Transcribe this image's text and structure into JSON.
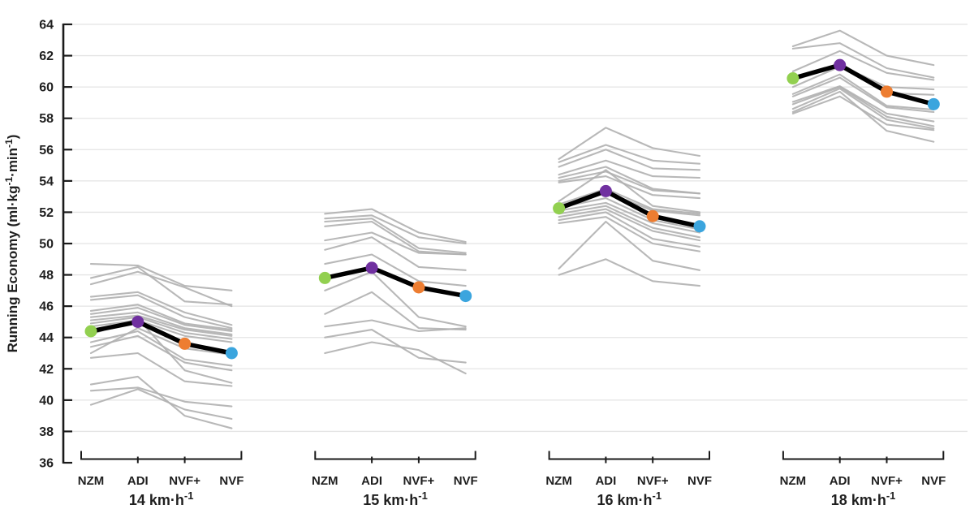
{
  "figure": {
    "background": "#ffffff"
  },
  "chart_data": {
    "type": "line",
    "title": "",
    "ylabel_parts": [
      {
        "t": "Running Economy (ml·kg"
      },
      {
        "t": "-1",
        "sup": true
      },
      {
        "t": "·min"
      },
      {
        "t": "-1",
        "sup": true
      },
      {
        "t": ")"
      }
    ],
    "ylim": [
      36,
      64
    ],
    "yticks": [
      36,
      38,
      40,
      42,
      44,
      46,
      48,
      50,
      52,
      54,
      56,
      58,
      60,
      62,
      64
    ],
    "grid": "horizontal",
    "legend": "none",
    "conditions": [
      "NZM",
      "ADI",
      "NVF+",
      "NVF"
    ],
    "condition_colors": {
      "NZM": "#92d050",
      "ADI": "#7030a0",
      "NVF+": "#ed7d31",
      "NVF": "#3ba5de"
    },
    "colors": {
      "individual": "#b0b0b0",
      "mean": "#000000",
      "grid": "#e4e4e4",
      "axis": "#1a1a1a",
      "text": "#1f1f1f"
    },
    "groups": [
      {
        "speed": {
          "t": "14 km·h",
          "sup": "-1"
        },
        "mean": [
          44.4,
          45.0,
          43.6,
          43.0
        ],
        "individuals": [
          [
            48.7,
            48.6,
            47.3,
            47.0
          ],
          [
            47.8,
            48.5,
            46.3,
            46.1
          ],
          [
            47.4,
            48.2,
            47.2,
            46.0
          ],
          [
            46.6,
            46.9,
            45.6,
            44.8
          ],
          [
            46.4,
            46.7,
            45.3,
            44.6
          ],
          [
            45.7,
            46.1,
            44.9,
            44.5
          ],
          [
            45.5,
            45.9,
            44.8,
            44.4
          ],
          [
            45.3,
            45.6,
            44.6,
            44.2
          ],
          [
            45.1,
            45.4,
            44.5,
            44.1
          ],
          [
            44.9,
            45.3,
            44.3,
            43.9
          ],
          [
            44.7,
            45.1,
            44.1,
            43.7
          ],
          [
            44.2,
            45.2,
            41.9,
            41.1
          ],
          [
            43.7,
            44.4,
            42.6,
            42.2
          ],
          [
            43.4,
            44.1,
            42.4,
            41.9
          ],
          [
            43.0,
            44.6,
            43.3,
            42.9
          ],
          [
            42.7,
            43.0,
            41.2,
            40.9
          ],
          [
            41.0,
            41.5,
            39.0,
            38.2
          ],
          [
            40.6,
            40.8,
            39.9,
            39.6
          ],
          [
            39.7,
            40.7,
            39.4,
            38.8
          ]
        ]
      },
      {
        "speed": {
          "t": "15 km·h",
          "sup": "-1"
        },
        "mean": [
          47.8,
          48.45,
          47.2,
          46.65
        ],
        "individuals": [
          [
            51.9,
            52.2,
            50.7,
            50.1
          ],
          [
            51.6,
            51.8,
            50.4,
            50.0
          ],
          [
            51.4,
            51.6,
            49.7,
            49.4
          ],
          [
            51.1,
            51.4,
            49.5,
            49.3
          ],
          [
            50.2,
            50.7,
            49.4,
            49.3
          ],
          [
            49.6,
            50.4,
            48.5,
            48.3
          ],
          [
            48.7,
            49.3,
            47.6,
            47.3
          ],
          [
            47.0,
            48.2,
            45.3,
            44.7
          ],
          [
            45.5,
            46.9,
            44.6,
            44.5
          ],
          [
            44.7,
            45.1,
            44.4,
            44.6
          ],
          [
            44.0,
            44.5,
            42.7,
            42.4
          ],
          [
            43.0,
            43.7,
            43.2,
            41.7
          ]
        ]
      },
      {
        "speed": {
          "t": "16 km·h",
          "sup": "-1"
        },
        "mean": [
          52.25,
          53.35,
          51.75,
          51.1
        ],
        "individuals": [
          [
            55.4,
            57.4,
            56.1,
            55.6
          ],
          [
            55.2,
            56.3,
            55.3,
            55.1
          ],
          [
            54.9,
            56.0,
            54.8,
            54.7
          ],
          [
            54.4,
            55.3,
            54.3,
            54.2
          ],
          [
            54.2,
            54.9,
            53.5,
            53.2
          ],
          [
            54.0,
            54.6,
            53.4,
            53.2
          ],
          [
            53.9,
            54.3,
            53.1,
            52.9
          ],
          [
            52.7,
            54.7,
            52.4,
            52.0
          ],
          [
            52.5,
            53.5,
            52.2,
            51.9
          ],
          [
            52.4,
            53.3,
            52.1,
            51.8
          ],
          [
            52.3,
            52.9,
            51.5,
            50.9
          ],
          [
            52.1,
            52.6,
            51.3,
            50.7
          ],
          [
            51.9,
            52.4,
            51.0,
            50.4
          ],
          [
            51.7,
            52.2,
            50.8,
            50.2
          ],
          [
            51.5,
            52.0,
            50.3,
            49.8
          ],
          [
            51.3,
            51.7,
            50.0,
            49.5
          ],
          [
            48.4,
            51.4,
            48.9,
            48.3
          ],
          [
            48.0,
            49.0,
            47.6,
            47.3
          ]
        ]
      },
      {
        "speed": {
          "t": "18 km·h",
          "sup": "-1"
        },
        "mean": [
          60.55,
          61.4,
          59.7,
          58.9
        ],
        "individuals": [
          [
            62.6,
            63.6,
            62.0,
            61.4
          ],
          [
            62.45,
            62.8,
            61.2,
            60.6
          ],
          [
            61.0,
            62.3,
            60.9,
            60.45
          ],
          [
            60.4,
            61.4,
            60.0,
            59.85
          ],
          [
            60.0,
            61.3,
            59.6,
            59.5
          ],
          [
            59.55,
            60.8,
            58.8,
            58.55
          ],
          [
            59.4,
            60.6,
            58.7,
            58.4
          ],
          [
            59.05,
            60.05,
            58.3,
            57.8
          ],
          [
            58.9,
            60.0,
            58.1,
            57.5
          ],
          [
            58.6,
            59.9,
            57.9,
            57.35
          ],
          [
            58.3,
            59.4,
            57.6,
            57.25
          ],
          [
            58.4,
            59.7,
            57.2,
            56.5
          ]
        ]
      }
    ]
  }
}
